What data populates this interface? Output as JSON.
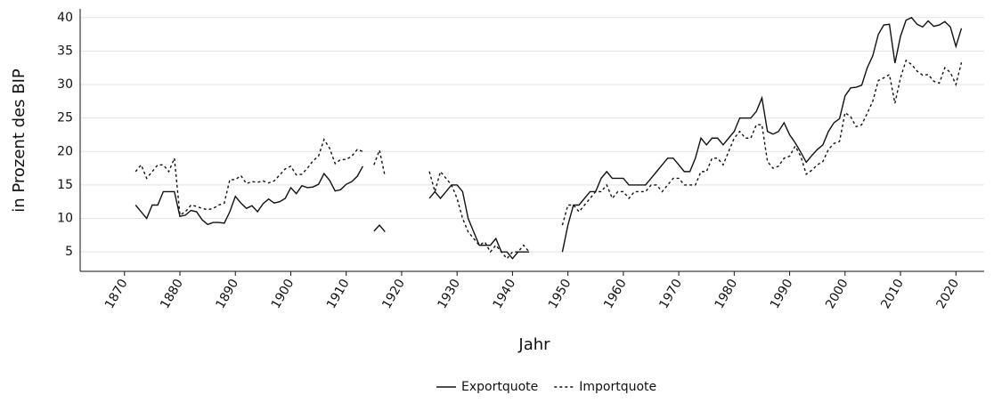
{
  "chart_data": {
    "type": "line",
    "x_label": "Jahr",
    "y_label": "in Prozent des BIP",
    "x": [
      1872,
      1873,
      1874,
      1875,
      1876,
      1877,
      1878,
      1879,
      1880,
      1881,
      1882,
      1883,
      1884,
      1885,
      1886,
      1887,
      1888,
      1889,
      1890,
      1891,
      1892,
      1893,
      1894,
      1895,
      1896,
      1897,
      1898,
      1899,
      1900,
      1901,
      1902,
      1903,
      1904,
      1905,
      1906,
      1907,
      1908,
      1909,
      1910,
      1911,
      1912,
      1913,
      1914,
      1915,
      1916,
      1917,
      1918,
      1919,
      1920,
      1921,
      1922,
      1923,
      1924,
      1925,
      1926,
      1927,
      1928,
      1929,
      1930,
      1931,
      1932,
      1933,
      1934,
      1935,
      1936,
      1937,
      1938,
      1939,
      1940,
      1941,
      1942,
      1943,
      1944,
      1945,
      1946,
      1947,
      1948,
      1949,
      1950,
      1951,
      1952,
      1953,
      1954,
      1955,
      1956,
      1957,
      1958,
      1959,
      1960,
      1961,
      1962,
      1963,
      1964,
      1965,
      1966,
      1967,
      1968,
      1969,
      1970,
      1971,
      1972,
      1973,
      1974,
      1975,
      1976,
      1977,
      1978,
      1979,
      1980,
      1981,
      1982,
      1983,
      1984,
      1985,
      1986,
      1987,
      1988,
      1989,
      1990,
      1991,
      1992,
      1993,
      1994,
      1995,
      1996,
      1997,
      1998,
      1999,
      2000,
      2001,
      2002,
      2003,
      2004,
      2005,
      2006,
      2007,
      2008,
      2009,
      2010,
      2011,
      2012,
      2013,
      2014,
      2015,
      2016,
      2017,
      2018,
      2019,
      2020,
      2021
    ],
    "series": [
      {
        "name": "Exportquote",
        "color": "#111111",
        "dash": "none",
        "values": [
          12,
          11,
          10,
          12,
          12,
          14,
          14,
          14,
          10.3,
          10.5,
          11.2,
          11,
          9.8,
          9.1,
          9.4,
          9.4,
          9.3,
          11,
          13.3,
          12.3,
          11.5,
          11.9,
          11,
          12.2,
          12.9,
          12.3,
          12.5,
          13,
          14.6,
          13.7,
          14.9,
          14.6,
          14.7,
          15.1,
          16.7,
          15.7,
          14.1,
          14.3,
          15.1,
          15.5,
          16.3,
          17.8,
          null,
          8.1,
          9,
          8,
          null,
          null,
          null,
          null,
          null,
          null,
          null,
          13,
          14,
          13,
          14,
          15,
          15,
          14,
          10,
          8,
          6,
          6,
          6,
          7,
          5,
          5,
          4,
          5,
          5,
          5,
          null,
          null,
          null,
          null,
          null,
          5,
          9,
          12,
          12,
          13,
          14,
          14,
          16,
          17,
          16,
          16,
          16,
          15,
          15,
          15,
          15,
          16,
          17,
          18,
          19,
          19,
          18,
          17,
          17,
          19,
          22,
          21,
          22,
          22,
          21,
          22,
          23,
          25,
          25,
          25,
          26,
          28,
          23,
          22.6,
          23,
          24.3,
          22.5,
          21.3,
          19.9,
          18.4,
          19.4,
          20.3,
          21,
          23,
          24.3,
          24.9,
          28.3,
          29.5,
          29.6,
          29.9,
          32.5,
          34.3,
          37.5,
          38.9,
          39,
          33.2,
          37.2,
          39.6,
          40,
          39,
          38.6,
          39.5,
          38.7,
          38.9,
          39.4,
          38.6,
          35.7,
          38.4
        ]
      },
      {
        "name": "Importquote",
        "color": "#111111",
        "dash": "3,3",
        "values": [
          17,
          18,
          16,
          17,
          18,
          18,
          17,
          19,
          10.5,
          11,
          12,
          11.8,
          11.5,
          11.3,
          11.5,
          12,
          12.3,
          15.8,
          15.8,
          16.4,
          15.2,
          15.5,
          15.4,
          15.6,
          15.3,
          15.6,
          16.5,
          17.4,
          17.8,
          16.5,
          16.6,
          17.5,
          18.6,
          19.3,
          21.8,
          20.5,
          18.2,
          18.8,
          18.8,
          19.3,
          20.3,
          20,
          null,
          18,
          20.2,
          16.3,
          null,
          null,
          null,
          null,
          null,
          null,
          null,
          17,
          14,
          17,
          16,
          15,
          13,
          10,
          8,
          7,
          6,
          6.5,
          5,
          6,
          5,
          4,
          5,
          5,
          6,
          5,
          null,
          null,
          null,
          null,
          null,
          9,
          12,
          12,
          11,
          12,
          13,
          14,
          14,
          15,
          13,
          14,
          14,
          13,
          14,
          14,
          14,
          15,
          15,
          14,
          15,
          16,
          16,
          15,
          15,
          15,
          17,
          17,
          19,
          19,
          18,
          20,
          22,
          23,
          22,
          22,
          24,
          24,
          18.5,
          17.5,
          17.8,
          19,
          19.3,
          20.8,
          19.3,
          16.6,
          17.2,
          18,
          18.5,
          20.3,
          21.2,
          21.5,
          25.8,
          25.2,
          23.7,
          24,
          25.7,
          27.5,
          30.6,
          31,
          31.5,
          27.2,
          31,
          33.6,
          33,
          32,
          31.4,
          31.5,
          30.5,
          30.2,
          32.5,
          31.8,
          30,
          33.3
        ]
      }
    ],
    "xlim": [
      1862,
      2025.1
    ],
    "ylim": [
      2.1,
      41.3
    ],
    "xticks": [
      1870,
      1880,
      1890,
      1900,
      1910,
      1920,
      1930,
      1940,
      1950,
      1960,
      1970,
      1980,
      1990,
      2000,
      2010,
      2020
    ],
    "yticks": [
      5,
      10,
      15,
      20,
      25,
      30,
      35,
      40
    ],
    "grid": true,
    "legend": "bottom"
  }
}
